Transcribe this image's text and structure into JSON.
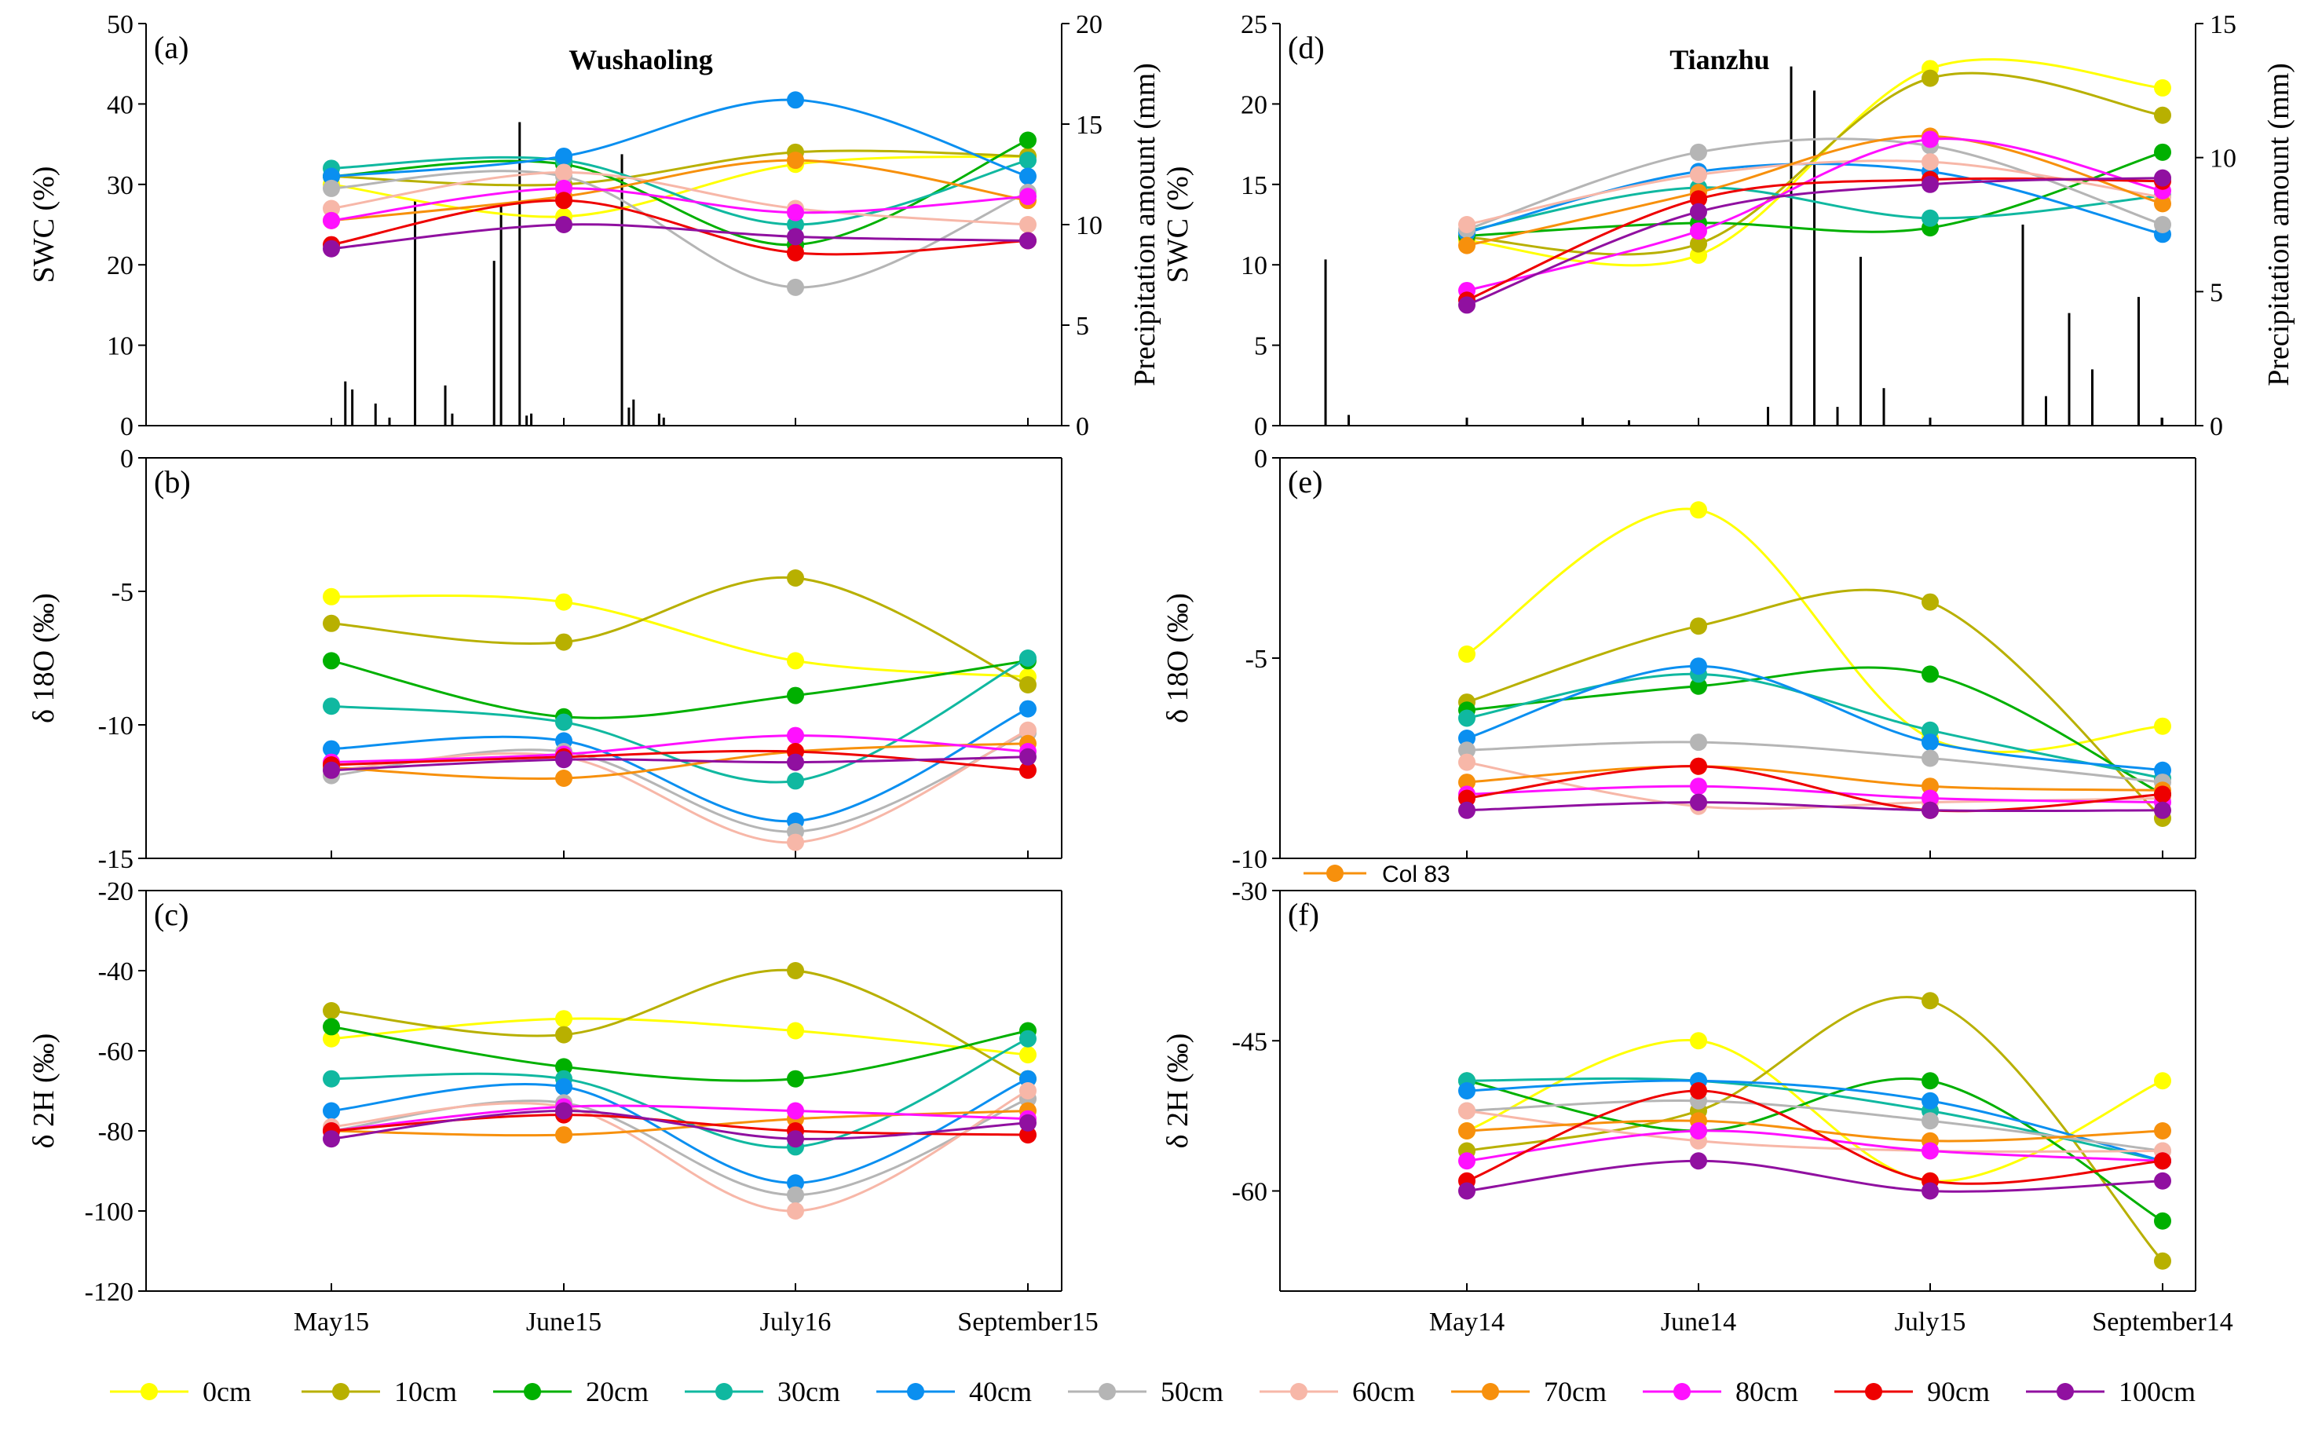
{
  "legend": [
    {
      "name": "0cm",
      "color": "#ffff00"
    },
    {
      "name": "10cm",
      "color": "#b8b000"
    },
    {
      "name": "20cm",
      "color": "#00b000"
    },
    {
      "name": "30cm",
      "color": "#10b8a0"
    },
    {
      "name": "40cm",
      "color": "#0a8ff0"
    },
    {
      "name": "50cm",
      "color": "#b5b5b5"
    },
    {
      "name": "60cm",
      "color": "#f7b7a8"
    },
    {
      "name": "70cm",
      "color": "#f7900c"
    },
    {
      "name": "80cm",
      "color": "#ff10ff"
    },
    {
      "name": "90cm",
      "color": "#ee0000"
    },
    {
      "name": "100cm",
      "color": "#9010a0"
    }
  ],
  "note": {
    "label": "Col 83",
    "color": "#f7900c"
  },
  "chart_data": [
    {
      "id": "a",
      "type": "line",
      "panel_label": "(a)",
      "title": "Wushaoling",
      "ylabel": "SWC (%)",
      "ylim": [
        0,
        50
      ],
      "yticks": [
        0,
        10,
        20,
        30,
        40,
        50
      ],
      "y2label": "Precipitation amount (mm)",
      "y2lim": [
        0,
        20
      ],
      "y2ticks": [
        0,
        5,
        10,
        15,
        20
      ],
      "categories": [
        "May15",
        "June15",
        "July16",
        "September15"
      ],
      "series": [
        {
          "name": "0cm",
          "values": [
            30,
            26,
            32.5,
            33.5
          ]
        },
        {
          "name": "10cm",
          "values": [
            31,
            30,
            34,
            33.5
          ]
        },
        {
          "name": "20cm",
          "values": [
            31,
            32.5,
            22.5,
            35.5
          ]
        },
        {
          "name": "30cm",
          "values": [
            32,
            33,
            25,
            33
          ]
        },
        {
          "name": "40cm",
          "values": [
            31,
            33.5,
            40.5,
            31
          ]
        },
        {
          "name": "50cm",
          "values": [
            29.5,
            31,
            17.2,
            29
          ]
        },
        {
          "name": "60cm",
          "values": [
            27,
            31.5,
            27,
            25
          ]
        },
        {
          "name": "70cm",
          "values": [
            25.5,
            28.5,
            33,
            28
          ]
        },
        {
          "name": "80cm",
          "values": [
            25.5,
            29.5,
            26.5,
            28.5
          ]
        },
        {
          "name": "90cm",
          "values": [
            22.5,
            28,
            21.5,
            23
          ]
        },
        {
          "name": "100cm",
          "values": [
            22,
            25,
            23.5,
            23
          ]
        }
      ],
      "precipitation": [
        {
          "x": 0.06,
          "v": 2.2
        },
        {
          "x": 0.09,
          "v": 1.8
        },
        {
          "x": 0.19,
          "v": 1.1
        },
        {
          "x": 0.25,
          "v": 0.4
        },
        {
          "x": 0.36,
          "v": 11.2
        },
        {
          "x": 0.49,
          "v": 2.0
        },
        {
          "x": 0.52,
          "v": 0.6
        },
        {
          "x": 0.7,
          "v": 8.2
        },
        {
          "x": 0.73,
          "v": 11.0
        },
        {
          "x": 0.81,
          "v": 15.1
        },
        {
          "x": 0.84,
          "v": 0.5
        },
        {
          "x": 0.86,
          "v": 0.6
        },
        {
          "x": 1.25,
          "v": 13.5
        },
        {
          "x": 1.28,
          "v": 0.9
        },
        {
          "x": 1.3,
          "v": 1.3
        },
        {
          "x": 1.41,
          "v": 0.6
        },
        {
          "x": 1.43,
          "v": 0.4
        }
      ]
    },
    {
      "id": "b",
      "type": "line",
      "panel_label": "(b)",
      "ylabel": "δ 18O (‰)",
      "ylim": [
        -15,
        0
      ],
      "yticks": [
        -15,
        -10,
        -5,
        0
      ],
      "categories": [
        "May15",
        "June15",
        "July16",
        "September15"
      ],
      "series": [
        {
          "name": "0cm",
          "values": [
            -5.2,
            -5.4,
            -7.6,
            -8.2
          ]
        },
        {
          "name": "10cm",
          "values": [
            -6.2,
            -6.9,
            -4.5,
            -8.5
          ]
        },
        {
          "name": "20cm",
          "values": [
            -7.6,
            -9.7,
            -8.9,
            -7.6
          ]
        },
        {
          "name": "30cm",
          "values": [
            -9.3,
            -9.9,
            -12.1,
            -7.5
          ]
        },
        {
          "name": "40cm",
          "values": [
            -10.9,
            -10.6,
            -13.6,
            -9.4
          ]
        },
        {
          "name": "50cm",
          "values": [
            -11.9,
            -11.0,
            -14.0,
            -10.3
          ]
        },
        {
          "name": "60cm",
          "values": [
            -11.7,
            -11.2,
            -14.4,
            -10.2
          ]
        },
        {
          "name": "70cm",
          "values": [
            -11.6,
            -12.0,
            -11.0,
            -10.7
          ]
        },
        {
          "name": "80cm",
          "values": [
            -11.4,
            -11.1,
            -10.4,
            -11.0
          ]
        },
        {
          "name": "90cm",
          "values": [
            -11.5,
            -11.2,
            -11.0,
            -11.7
          ]
        },
        {
          "name": "100cm",
          "values": [
            -11.7,
            -11.3,
            -11.4,
            -11.2
          ]
        }
      ]
    },
    {
      "id": "c",
      "type": "line",
      "panel_label": "(c)",
      "ylabel": "δ 2H (‰)",
      "ylim": [
        -120,
        -20
      ],
      "yticks": [
        -120,
        -100,
        -80,
        -60,
        -40,
        -20
      ],
      "categories": [
        "May15",
        "June15",
        "July16",
        "September15"
      ],
      "series": [
        {
          "name": "0cm",
          "values": [
            -57,
            -52,
            -55,
            -61
          ]
        },
        {
          "name": "10cm",
          "values": [
            -50,
            -56,
            -40,
            -67
          ]
        },
        {
          "name": "20cm",
          "values": [
            -54,
            -64,
            -67,
            -55
          ]
        },
        {
          "name": "30cm",
          "values": [
            -67,
            -67,
            -84,
            -57
          ]
        },
        {
          "name": "40cm",
          "values": [
            -75,
            -69,
            -93,
            -67
          ]
        },
        {
          "name": "50cm",
          "values": [
            -80,
            -73,
            -96,
            -72
          ]
        },
        {
          "name": "60cm",
          "values": [
            -79,
            -74,
            -100,
            -70
          ]
        },
        {
          "name": "70cm",
          "values": [
            -80,
            -81,
            -77,
            -75
          ]
        },
        {
          "name": "80cm",
          "values": [
            -80,
            -74,
            -75,
            -77
          ]
        },
        {
          "name": "90cm",
          "values": [
            -80,
            -76,
            -80,
            -81
          ]
        },
        {
          "name": "100cm",
          "values": [
            -82,
            -75,
            -82,
            -78
          ]
        }
      ]
    },
    {
      "id": "d",
      "type": "line",
      "panel_label": "(d)",
      "title": "Tianzhu",
      "ylabel": "SWC (%)",
      "ylim": [
        0,
        25
      ],
      "yticks": [
        0,
        5,
        10,
        15,
        20,
        25
      ],
      "y2label": "Precipitation amount (mm)",
      "y2lim": [
        0,
        15
      ],
      "y2ticks": [
        0,
        5,
        10,
        15
      ],
      "categories": [
        "May14",
        "June14",
        "July15",
        "September14"
      ],
      "series": [
        {
          "name": "0cm",
          "values": [
            11.5,
            10.6,
            22.2,
            21
          ]
        },
        {
          "name": "10cm",
          "values": [
            11.7,
            11.3,
            21.6,
            19.3
          ]
        },
        {
          "name": "20cm",
          "values": [
            11.8,
            12.6,
            12.3,
            17
          ]
        },
        {
          "name": "30cm",
          "values": [
            12.1,
            14.8,
            12.9,
            14.3
          ]
        },
        {
          "name": "40cm",
          "values": [
            12.0,
            15.8,
            15.8,
            11.9
          ]
        },
        {
          "name": "50cm",
          "values": [
            12.2,
            17.0,
            17.4,
            12.5
          ]
        },
        {
          "name": "60cm",
          "values": [
            12.5,
            15.6,
            16.4,
            14.2
          ]
        },
        {
          "name": "70cm",
          "values": [
            11.2,
            14.5,
            18.0,
            13.8
          ]
        },
        {
          "name": "80cm",
          "values": [
            8.4,
            12.1,
            17.8,
            14.6
          ]
        },
        {
          "name": "90cm",
          "values": [
            7.8,
            14.1,
            15.3,
            15.2
          ]
        },
        {
          "name": "100cm",
          "values": [
            7.5,
            13.3,
            15.0,
            15.4
          ]
        }
      ],
      "precipitation": [
        {
          "x": -0.61,
          "v": 6.2
        },
        {
          "x": -0.51,
          "v": 0.4
        },
        {
          "x": 0.0,
          "v": 0.3
        },
        {
          "x": 0.5,
          "v": 0.3
        },
        {
          "x": 0.7,
          "v": 0.2
        },
        {
          "x": 1.3,
          "v": 0.7
        },
        {
          "x": 1.4,
          "v": 13.4
        },
        {
          "x": 1.5,
          "v": 12.5
        },
        {
          "x": 1.6,
          "v": 0.7
        },
        {
          "x": 1.7,
          "v": 6.3
        },
        {
          "x": 1.8,
          "v": 1.4
        },
        {
          "x": 2.0,
          "v": 0.3
        },
        {
          "x": 2.4,
          "v": 7.5
        },
        {
          "x": 2.5,
          "v": 1.1
        },
        {
          "x": 2.6,
          "v": 4.2
        },
        {
          "x": 2.7,
          "v": 2.1
        },
        {
          "x": 2.9,
          "v": 4.8
        },
        {
          "x": 3.0,
          "v": 0.3
        }
      ]
    },
    {
      "id": "e",
      "type": "line",
      "panel_label": "(e)",
      "ylabel": "δ 18O (‰)",
      "ylim": [
        -10,
        0
      ],
      "yticks": [
        -10,
        -5,
        0
      ],
      "categories": [
        "May14",
        "June14",
        "July15",
        "September14"
      ],
      "series": [
        {
          "name": "0cm",
          "values": [
            -4.9,
            -1.3,
            -7.0,
            -6.7
          ]
        },
        {
          "name": "10cm",
          "values": [
            -6.1,
            -4.2,
            -3.6,
            -9.0
          ]
        },
        {
          "name": "20cm",
          "values": [
            -6.3,
            -5.7,
            -5.4,
            -8.4
          ]
        },
        {
          "name": "30cm",
          "values": [
            -6.5,
            -5.4,
            -6.8,
            -8.0
          ]
        },
        {
          "name": "40cm",
          "values": [
            -7.0,
            -5.2,
            -7.1,
            -7.8
          ]
        },
        {
          "name": "50cm",
          "values": [
            -7.3,
            -7.1,
            -7.5,
            -8.1
          ]
        },
        {
          "name": "60cm",
          "values": [
            -7.6,
            -8.7,
            -8.6,
            -8.5
          ]
        },
        {
          "name": "70cm",
          "values": [
            -8.1,
            -7.7,
            -8.2,
            -8.3
          ]
        },
        {
          "name": "80cm",
          "values": [
            -8.4,
            -8.2,
            -8.5,
            -8.6
          ]
        },
        {
          "name": "90cm",
          "values": [
            -8.5,
            -7.7,
            -8.8,
            -8.4
          ]
        },
        {
          "name": "100cm",
          "values": [
            -8.8,
            -8.6,
            -8.8,
            -8.8
          ]
        }
      ]
    },
    {
      "id": "f",
      "type": "line",
      "panel_label": "(f)",
      "ylabel": "δ 2H (‰)",
      "ylim": [
        -70,
        -30
      ],
      "yticks": [
        -60,
        -45,
        -30
      ],
      "categories": [
        "May14",
        "June14",
        "July15",
        "September14"
      ],
      "series": [
        {
          "name": "0cm",
          "values": [
            -54,
            -45,
            -59,
            -49
          ]
        },
        {
          "name": "10cm",
          "values": [
            -56,
            -52,
            -41,
            -67
          ]
        },
        {
          "name": "20cm",
          "values": [
            -49,
            -54,
            -49,
            -63
          ]
        },
        {
          "name": "30cm",
          "values": [
            -49,
            -49,
            -52,
            -57
          ]
        },
        {
          "name": "40cm",
          "values": [
            -50,
            -49,
            -51,
            -57
          ]
        },
        {
          "name": "50cm",
          "values": [
            -52,
            -51,
            -53,
            -56
          ]
        },
        {
          "name": "60cm",
          "values": [
            -52,
            -55,
            -56,
            -56
          ]
        },
        {
          "name": "70cm",
          "values": [
            -54,
            -53,
            -55,
            -54
          ]
        },
        {
          "name": "80cm",
          "values": [
            -57,
            -54,
            -56,
            -57
          ]
        },
        {
          "name": "90cm",
          "values": [
            -59,
            -50,
            -59,
            -57
          ]
        },
        {
          "name": "100cm",
          "values": [
            -60,
            -57,
            -60,
            -59
          ]
        }
      ]
    }
  ]
}
